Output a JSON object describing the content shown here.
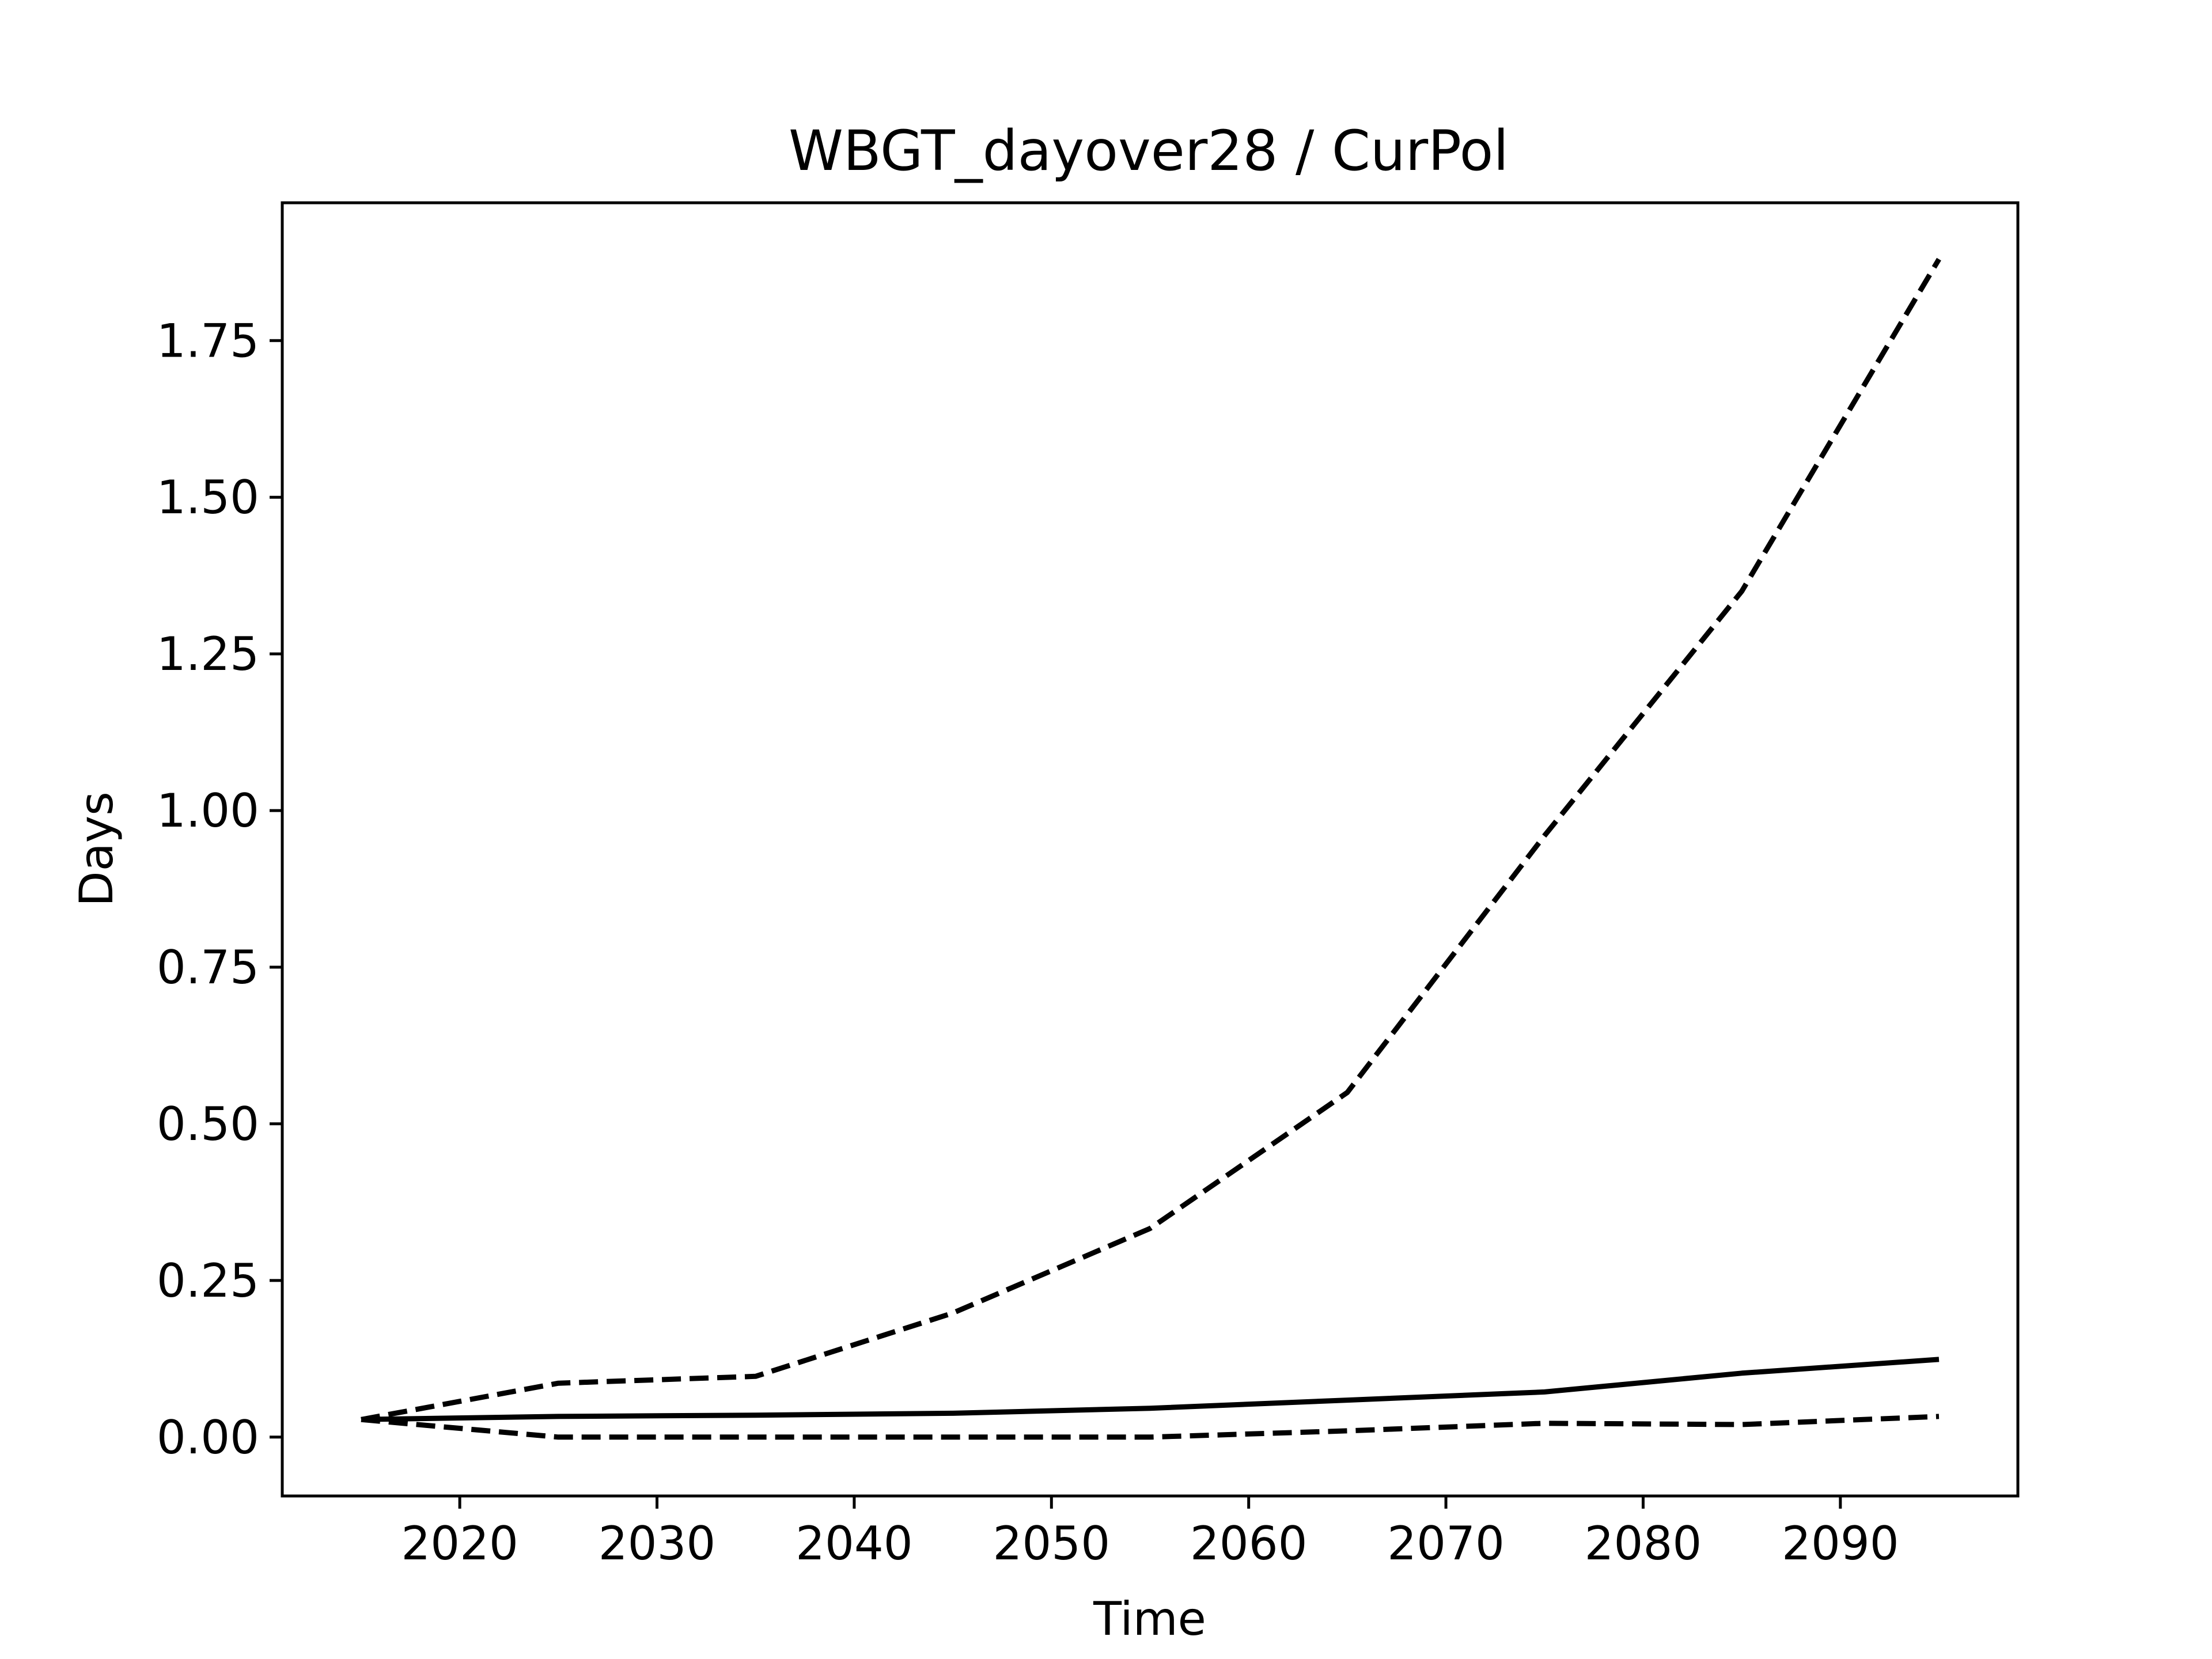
{
  "chart_data": {
    "type": "line",
    "title": "WBGT_dayover28 / CurPol",
    "xlabel": "Time",
    "ylabel": "Days",
    "xlim": [
      2011,
      2099
    ],
    "ylim": [
      -0.094,
      1.97
    ],
    "x_ticks": [
      2020,
      2030,
      2040,
      2050,
      2060,
      2070,
      2080,
      2090
    ],
    "y_ticks": [
      0.0,
      0.25,
      0.5,
      0.75,
      1.0,
      1.25,
      1.5,
      1.75
    ],
    "y_tick_labels": [
      "0.00",
      "0.25",
      "0.50",
      "0.75",
      "1.00",
      "1.25",
      "1.50",
      "1.75"
    ],
    "grid": false,
    "x": [
      2015,
      2025,
      2035,
      2045,
      2055,
      2065,
      2075,
      2085,
      2095
    ],
    "series": [
      {
        "style": "solid",
        "color": "#000000",
        "values": [
          0.028,
          0.033,
          0.035,
          0.038,
          0.046,
          0.059,
          0.072,
          0.102,
          0.124
        ]
      },
      {
        "style": "dashed",
        "color": "#000000",
        "values": [
          0.028,
          0.086,
          0.097,
          0.198,
          0.333,
          0.55,
          0.96,
          1.35,
          1.88
        ]
      },
      {
        "style": "dashed",
        "color": "#000000",
        "values": [
          0.028,
          0.0,
          0.0,
          0.0,
          0.0,
          0.01,
          0.022,
          0.02,
          0.033
        ]
      }
    ]
  }
}
